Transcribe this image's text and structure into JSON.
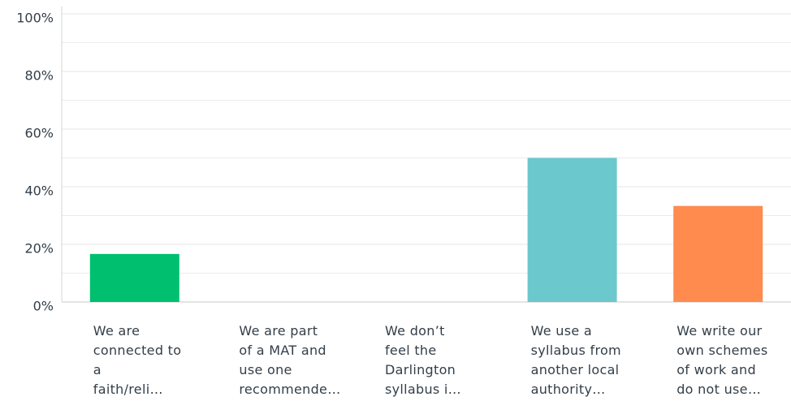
{
  "chart_data": {
    "type": "bar",
    "categories": [
      "We are\nconnected to\na\nfaith/reli…",
      "We are part\nof a MAT and\nuse one\nrecommende…",
      "We don’t\nfeel the\nDarlington\nsyllabus i…",
      "We use a\nsyllabus from\nanother local\nauthority…",
      "We write our\nown schemes\nof work and\ndo not use…"
    ],
    "values": [
      16.67,
      0,
      0,
      50,
      33.33
    ],
    "colors": [
      "#00bf6f",
      "#00bf6f",
      "#00bf6f",
      "#6bc8cd",
      "#ff8b4f"
    ],
    "ylim": [
      0,
      100
    ],
    "yticks": [
      {
        "value": 0,
        "label": "0%"
      },
      {
        "value": 20,
        "label": "20%"
      },
      {
        "value": 40,
        "label": "40%"
      },
      {
        "value": 60,
        "label": "60%"
      },
      {
        "value": 80,
        "label": "80%"
      },
      {
        "value": 100,
        "label": "100%"
      }
    ],
    "minor_yticks": [
      10,
      30,
      50,
      70,
      90
    ],
    "grid": true
  }
}
